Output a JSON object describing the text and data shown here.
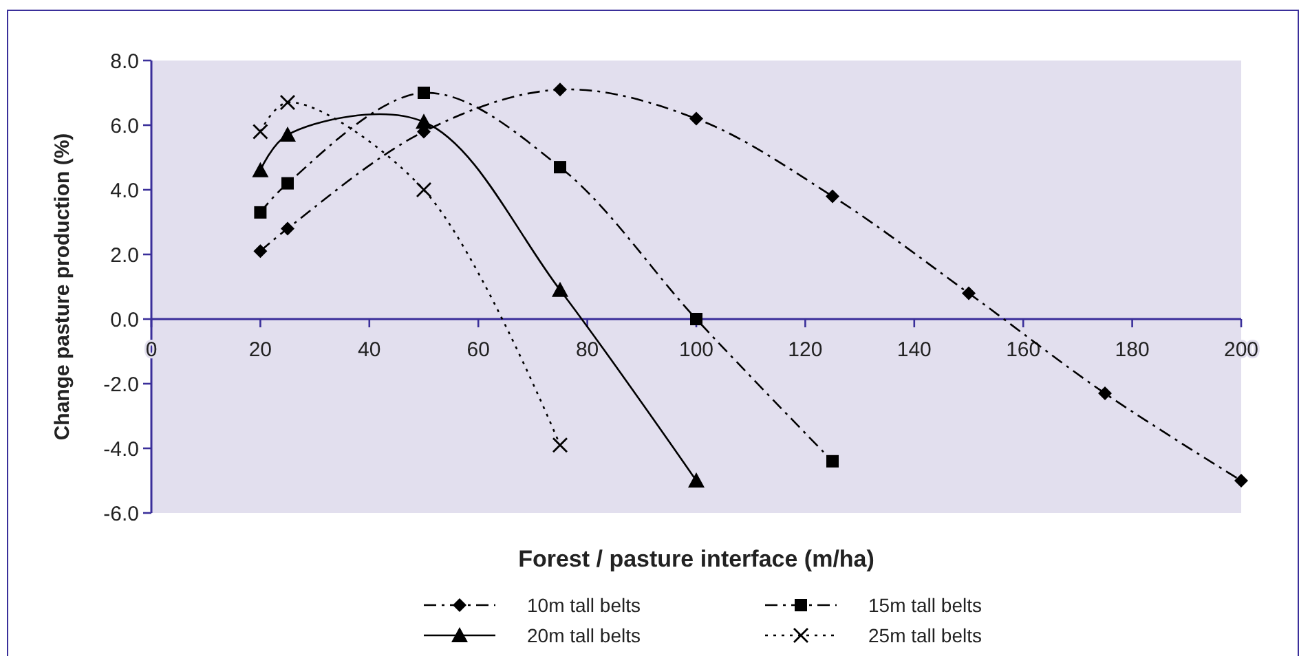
{
  "chart_data": {
    "type": "line",
    "xlabel": "Forest / pasture interface (m/ha)",
    "ylabel": "Change pasture production (%)",
    "xlim": [
      0,
      200
    ],
    "xticks": [
      0,
      20,
      40,
      60,
      80,
      100,
      120,
      140,
      160,
      180,
      200
    ],
    "ylim": [
      -6,
      8
    ],
    "yticks": [
      {
        "value": -6,
        "label": "-6.0"
      },
      {
        "value": -4,
        "label": "-4.0"
      },
      {
        "value": -2,
        "label": "-2.0"
      },
      {
        "value": 0,
        "label": "0.0"
      },
      {
        "value": 2,
        "label": "2.0"
      },
      {
        "value": 4,
        "label": "4.0"
      },
      {
        "value": 6,
        "label": "6.0"
      },
      {
        "value": 8,
        "label": "8.0"
      }
    ],
    "grid": false,
    "legend": "bottom",
    "series": [
      {
        "name": "10m tall belts",
        "color": "#000000",
        "marker": "diamond",
        "line_style": "dashed",
        "x": [
          20,
          25,
          50,
          75,
          100,
          125,
          150,
          175,
          200
        ],
        "values": [
          2.1,
          2.8,
          5.8,
          7.1,
          6.2,
          3.8,
          0.8,
          -2.3,
          -5.0
        ]
      },
      {
        "name": "15m tall belts",
        "color": "#000000",
        "marker": "square",
        "line_style": "dashed",
        "x": [
          20,
          25,
          50,
          75,
          100,
          125
        ],
        "values": [
          3.3,
          4.2,
          7.0,
          4.7,
          0.0,
          -4.4
        ]
      },
      {
        "name": "20m tall belts",
        "color": "#000000",
        "marker": "triangle",
        "line_style": "solid",
        "x": [
          20,
          25,
          50,
          75,
          100
        ],
        "values": [
          4.6,
          5.7,
          6.1,
          0.9,
          -5.0
        ]
      },
      {
        "name": "25m tall belts",
        "color": "#000000",
        "marker": "cross",
        "line_style": "dotted",
        "x": [
          20,
          25,
          50,
          75
        ],
        "values": [
          5.8,
          6.7,
          4.0,
          -3.9
        ]
      }
    ]
  }
}
